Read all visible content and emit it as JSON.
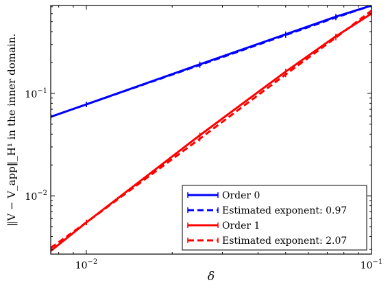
{
  "chart_data": {
    "type": "line",
    "x_scale": "log",
    "y_scale": "log",
    "xlabel": "δ",
    "ylabel": "‖V − V_app‖_H¹ in the inner domain.",
    "xlim": [
      0.0075,
      0.1
    ],
    "ylim": [
      0.0027,
      0.72
    ],
    "x_ticks": [
      {
        "value": 0.01,
        "base": "10",
        "exp": "−2"
      },
      {
        "value": 0.1,
        "base": "10",
        "exp": "−1"
      }
    ],
    "y_ticks": [
      {
        "value": 0.01,
        "base": "10",
        "exp": "−2"
      },
      {
        "value": 0.1,
        "base": "10",
        "exp": "−1"
      }
    ],
    "grid": false,
    "legend_position": "lower-right",
    "series": [
      {
        "name": "Order 0",
        "color": "#0000ff",
        "style": "solid",
        "marker": "tick",
        "x": [
          0.0075,
          0.01,
          0.025,
          0.05,
          0.075,
          0.1
        ],
        "y": [
          0.059,
          0.078,
          0.192,
          0.377,
          0.56,
          0.72
        ]
      },
      {
        "name": "Estimated exponent: 0.97",
        "color": "#0000ff",
        "style": "dashed",
        "marker": "tick",
        "x": [
          0.0075,
          0.01,
          0.025,
          0.05,
          0.075,
          0.1
        ],
        "y": [
          0.059,
          0.078,
          0.189,
          0.371,
          0.55,
          0.72
        ]
      },
      {
        "name": "Order 1",
        "color": "#ff0000",
        "style": "solid",
        "marker": "tick",
        "x": [
          0.0075,
          0.01,
          0.025,
          0.05,
          0.075,
          0.1
        ],
        "y": [
          0.0029,
          0.0055,
          0.039,
          0.163,
          0.36,
          0.6
        ]
      },
      {
        "name": "Estimated exponent: 2.07",
        "color": "#ff0000",
        "style": "dashed",
        "marker": "tick",
        "x": [
          0.0075,
          0.01,
          0.025,
          0.05,
          0.075,
          0.1
        ],
        "y": [
          0.0031,
          0.0055,
          0.036,
          0.153,
          0.35,
          0.64
        ]
      }
    ]
  }
}
